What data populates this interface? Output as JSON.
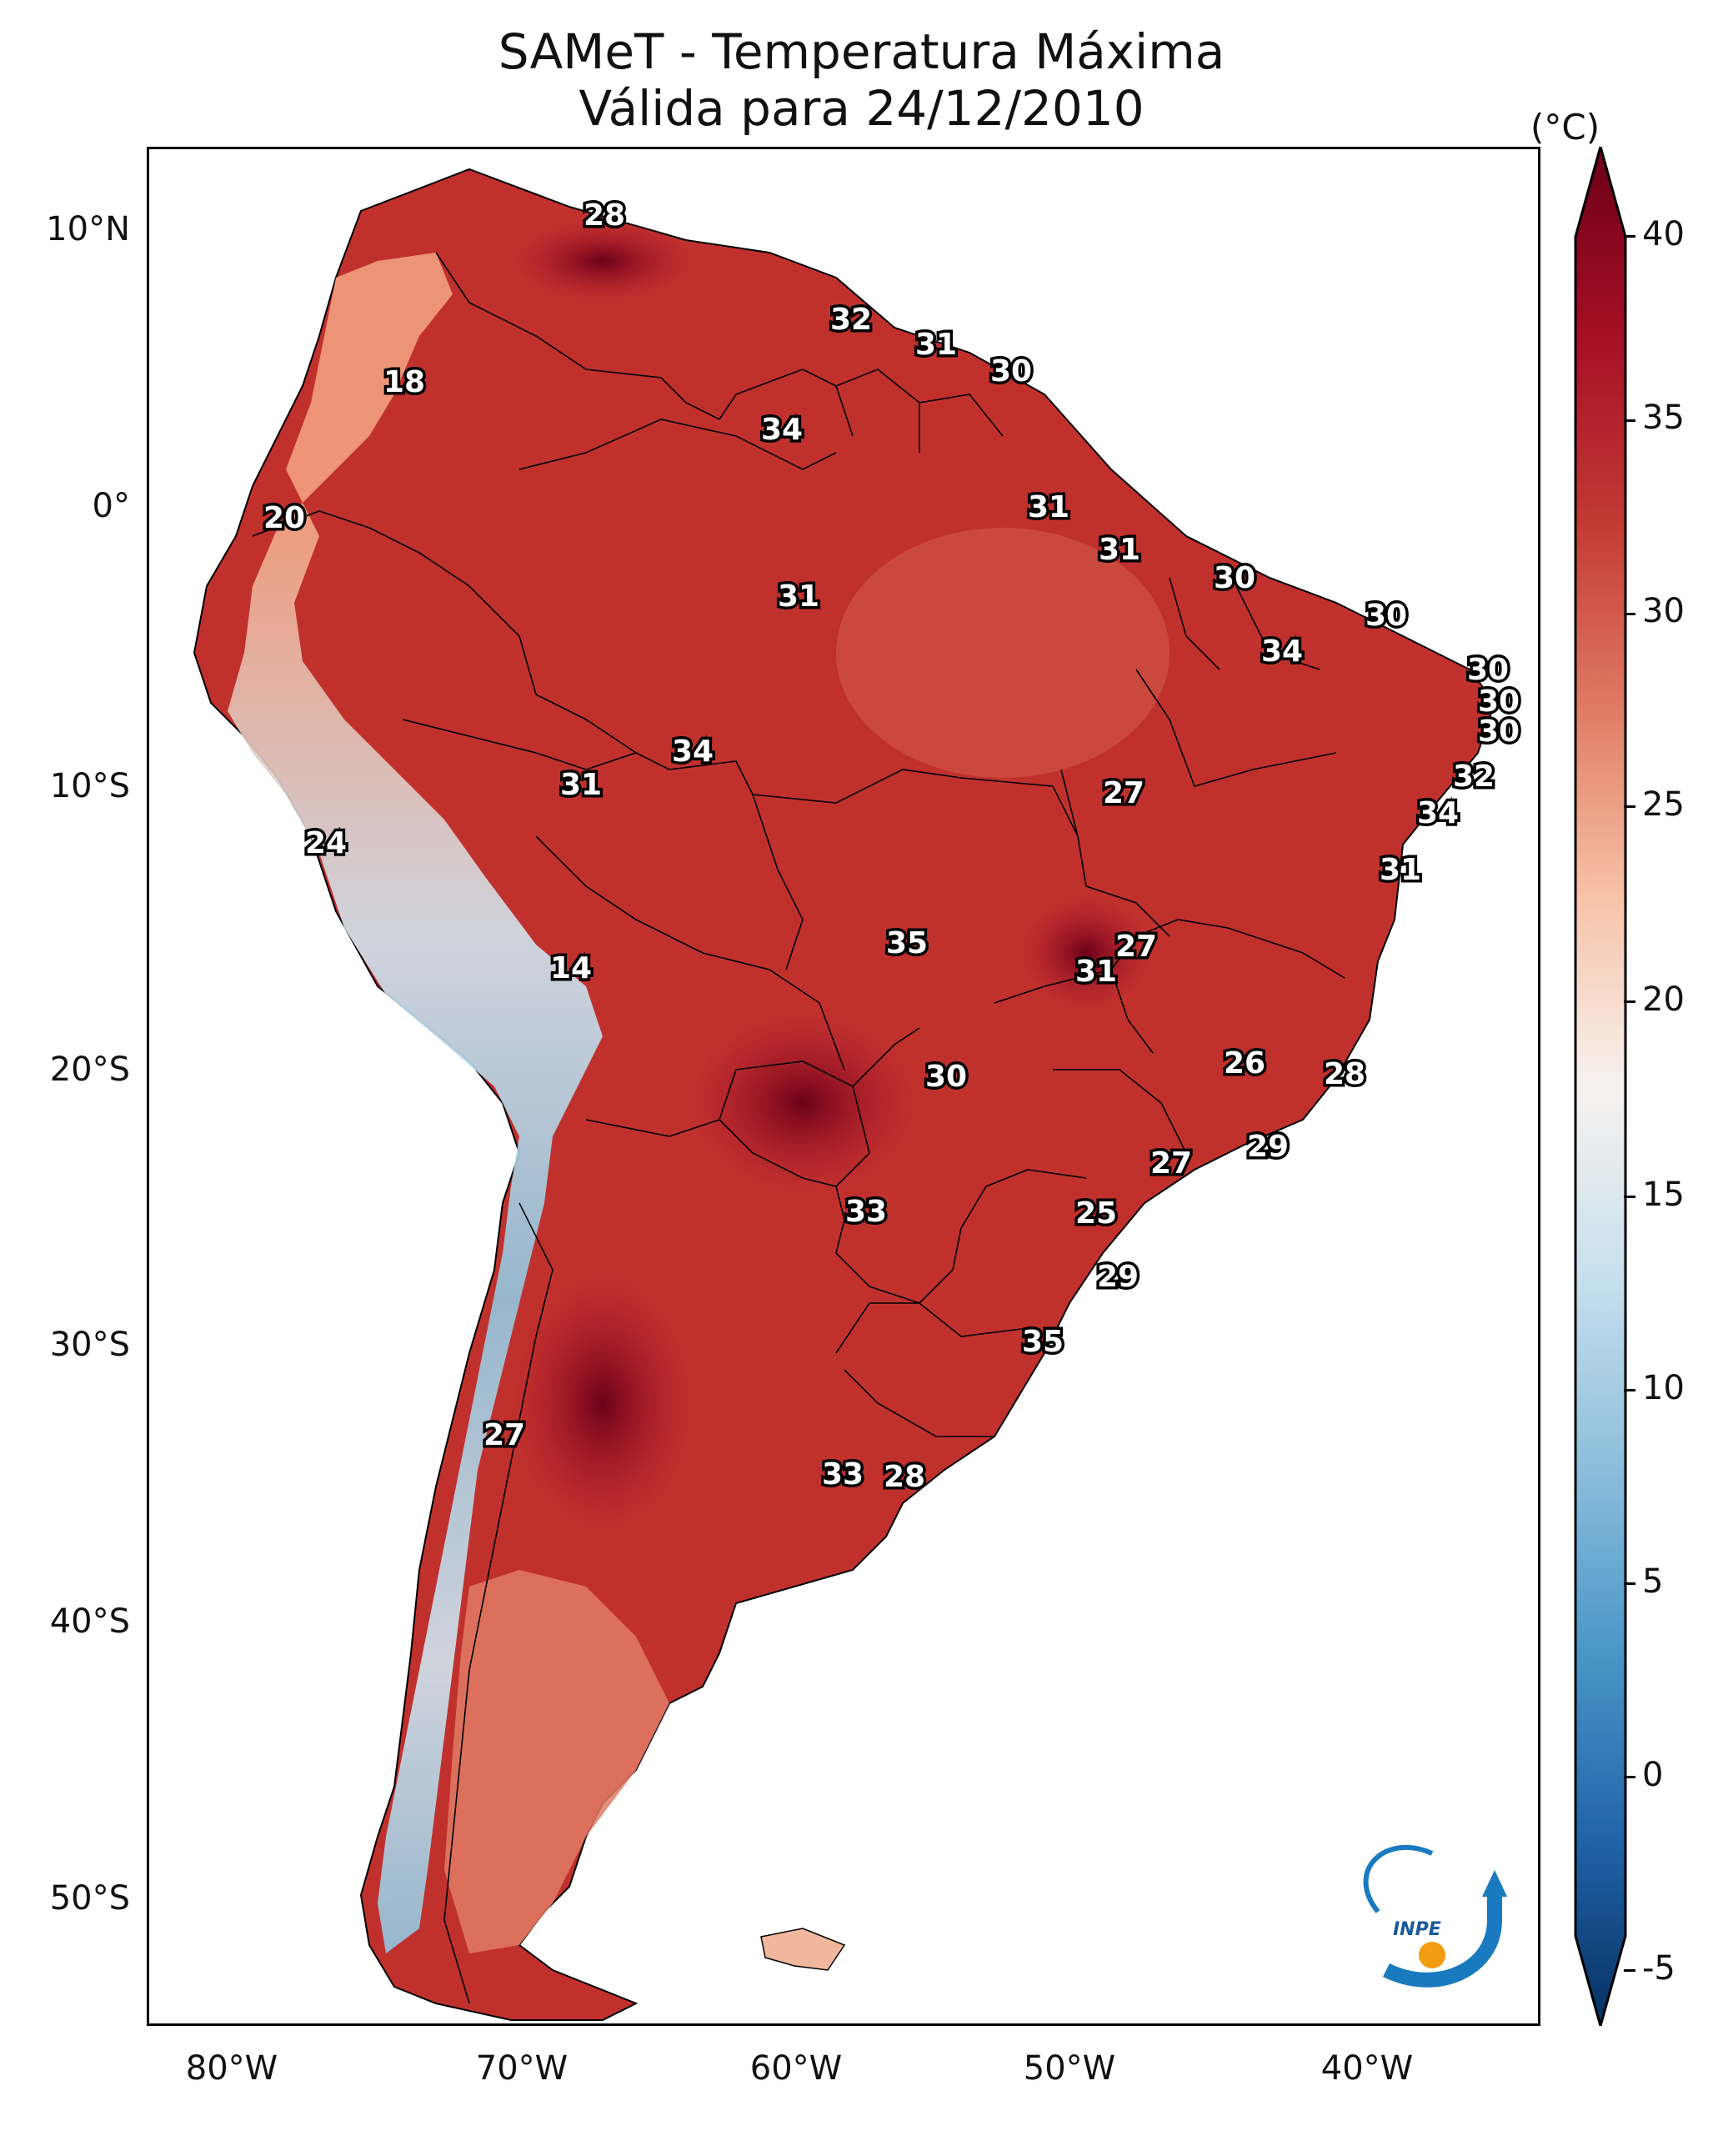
{
  "title": "SAMeT - Temperatura Máxima",
  "subtitle": "Válida para 24/12/2010",
  "colorbar": {
    "unit": "(°C)",
    "ticks": [
      "40",
      "35",
      "30",
      "25",
      "20",
      "15",
      "10",
      "5",
      "0",
      "-5"
    ],
    "colors": [
      "#6b0019",
      "#b2182b",
      "#d6604d",
      "#f4a582",
      "#fddbc7",
      "#f7f7f7",
      "#d1e5f0",
      "#92c5de",
      "#4393c3",
      "#2166ac",
      "#053061"
    ]
  },
  "axes": {
    "lat_labels": [
      "10°N",
      "0°",
      "10°S",
      "20°S",
      "30°S",
      "40°S",
      "50°S"
    ],
    "lon_labels": [
      "80°W",
      "70°W",
      "60°W",
      "50°W",
      "40°W"
    ]
  },
  "map_labels": [
    "28",
    "18",
    "32",
    "31",
    "30",
    "34",
    "20",
    "31",
    "31",
    "31",
    "30",
    "30",
    "34",
    "30",
    "30",
    "30",
    "34",
    "31",
    "27",
    "32",
    "34",
    "24",
    "31",
    "14",
    "35",
    "27",
    "31",
    "26",
    "28",
    "30",
    "29",
    "27",
    "33",
    "25",
    "29",
    "35",
    "27",
    "33",
    "28"
  ],
  "logo": {
    "text": "INPE",
    "icon": "inpe-logo-icon"
  }
}
